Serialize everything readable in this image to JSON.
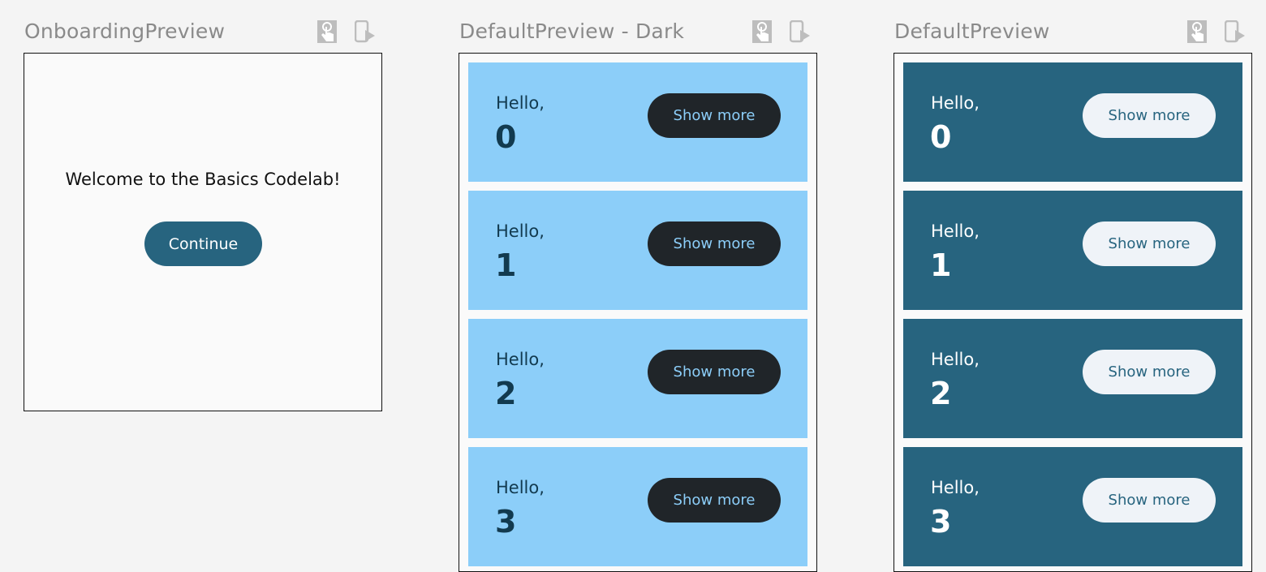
{
  "previews": [
    {
      "title": "OnboardingPreview",
      "welcome": "Welcome to the Basics Codelab!",
      "button": "Continue"
    },
    {
      "title": "DefaultPreview - Dark",
      "items": [
        {
          "greeting": "Hello,",
          "name": "0",
          "button": "Show more"
        },
        {
          "greeting": "Hello,",
          "name": "1",
          "button": "Show more"
        },
        {
          "greeting": "Hello,",
          "name": "2",
          "button": "Show more"
        },
        {
          "greeting": "Hello,",
          "name": "3",
          "button": "Show more"
        }
      ]
    },
    {
      "title": "DefaultPreview",
      "items": [
        {
          "greeting": "Hello,",
          "name": "0",
          "button": "Show more"
        },
        {
          "greeting": "Hello,",
          "name": "1",
          "button": "Show more"
        },
        {
          "greeting": "Hello,",
          "name": "2",
          "button": "Show more"
        },
        {
          "greeting": "Hello,",
          "name": "3",
          "button": "Show more"
        }
      ]
    }
  ],
  "icons": [
    "interactive-mode-icon",
    "deploy-to-device-icon"
  ],
  "colors": {
    "primary": "#27647f",
    "dark_primary": "#8ccef9",
    "dark_surface": "#202529",
    "on_primary_light": "#eff3f8"
  }
}
